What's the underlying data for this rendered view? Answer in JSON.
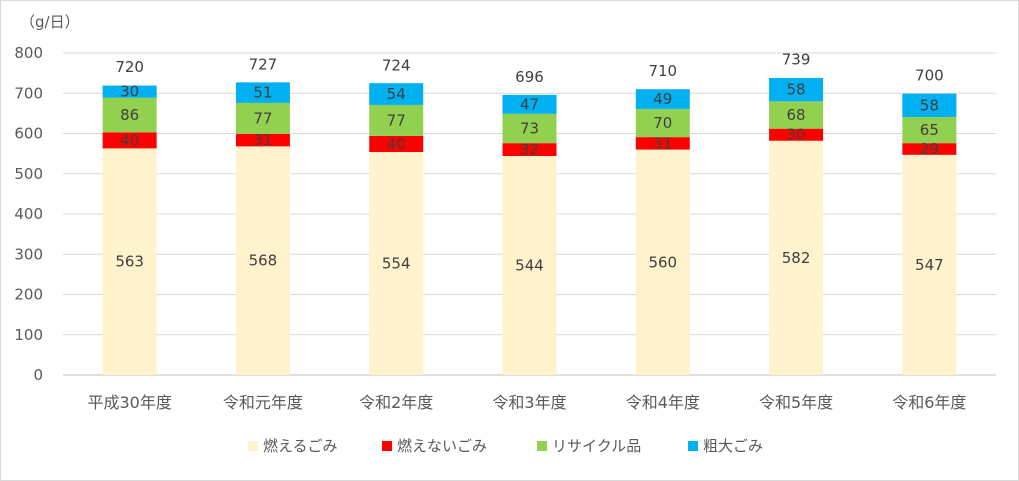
{
  "unit_label": "（g/日）",
  "chart_data": {
    "type": "bar",
    "stacked": true,
    "categories": [
      "平成30年度",
      "令和元年度",
      "令和2年度",
      "令和3年度",
      "令和4年度",
      "令和5年度",
      "令和6年度"
    ],
    "series": [
      {
        "name": "燃えるごみ",
        "color": "#FFF2CC",
        "values": [
          563,
          568,
          554,
          544,
          560,
          582,
          547
        ]
      },
      {
        "name": "燃えないごみ",
        "color": "#FF0000",
        "values": [
          40,
          31,
          40,
          32,
          31,
          30,
          29
        ]
      },
      {
        "name": "リサイクル品",
        "color": "#92D050",
        "values": [
          86,
          77,
          77,
          73,
          70,
          68,
          65
        ]
      },
      {
        "name": "粗大ごみ",
        "color": "#00B0F0",
        "values": [
          30,
          51,
          54,
          47,
          49,
          58,
          58
        ]
      }
    ],
    "totals": [
      720,
      727,
      724,
      696,
      710,
      739,
      700
    ],
    "ylim": [
      0,
      800
    ],
    "yticks": [
      0,
      100,
      200,
      300,
      400,
      500,
      600,
      700,
      800
    ],
    "grid": true,
    "legend_position": "bottom"
  }
}
